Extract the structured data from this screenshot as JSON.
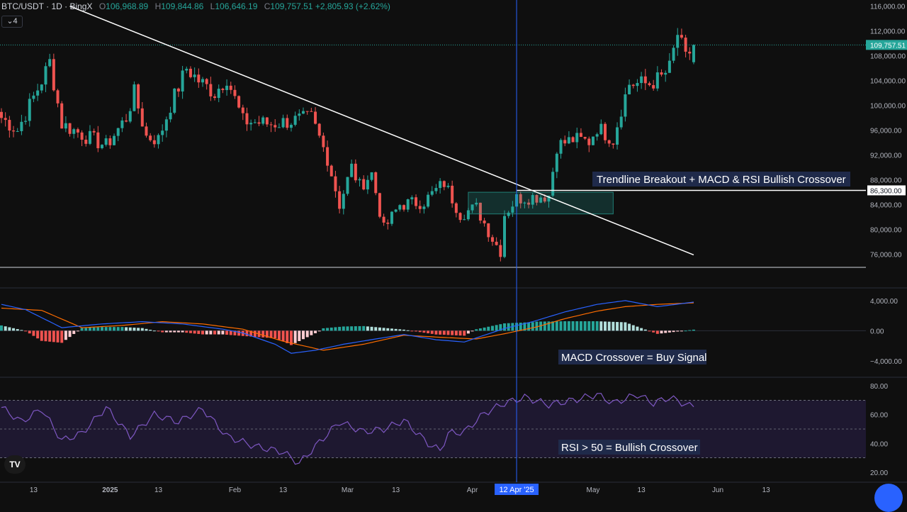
{
  "header": {
    "symbol": "BTC/USDT · 1D · BingX",
    "o_label": "O",
    "o_value": "106,968.89",
    "h_label": "H",
    "h_value": "109,844.86",
    "l_label": "L",
    "l_value": "106,646.19",
    "c_label": "C",
    "c_value": "109,757.51",
    "change": "+2,805.93 (+2.62%)"
  },
  "layers_toggle": "4",
  "logo_text": "TV",
  "price_axis": {
    "ticks": [
      "116,000.00",
      "112,000.00",
      "108,000.00",
      "104,000.00",
      "100,000.00",
      "96,000.00",
      "92,000.00",
      "88,000.00",
      "84,000.00",
      "80,000.00",
      "76,000.00"
    ],
    "last_price": "109,757.51",
    "level": "86,300.00"
  },
  "macd_axis": {
    "ticks": [
      "4,000.00",
      "0.00",
      "−4,000.00"
    ]
  },
  "rsi_axis": {
    "ticks": [
      "80.00",
      "60.00",
      "40.00",
      "20.00"
    ]
  },
  "time_axis": {
    "labels": [
      "13",
      "2025",
      "13",
      "Feb",
      "13",
      "Mar",
      "13",
      "Apr",
      "May",
      "13",
      "Jun",
      "13"
    ],
    "cursor_label": "12 Apr '25"
  },
  "annotations": {
    "breakout": "Trendline Breakout + MACD & RSI Bullish Crossover",
    "macd": "MACD Crossover = Buy Signal",
    "rsi": "RSI > 50 = Bullish Crossover"
  },
  "colors": {
    "bull": "#26a69a",
    "bear": "#ef5350",
    "macd_line": "#2962ff",
    "signal_line": "#ff6d00",
    "rsi_line": "#7e57c2",
    "rsi_band": "#1e1830",
    "cursor": "#2962ff",
    "label_bg": "#1f2a4a"
  },
  "chart_data": [
    {
      "type": "candlestick",
      "title": "BTC/USDT · 1D · BingX",
      "x_range": [
        "2024-12-05",
        "2025-06-20"
      ],
      "ylim": [
        74000,
        117000
      ],
      "ohlc_last": {
        "open": 106968.89,
        "high": 109844.86,
        "low": 106646.19,
        "close": 109757.51
      },
      "anchors": [
        {
          "date": "2024-12-05",
          "close": 98000
        },
        {
          "date": "2024-12-09",
          "close": 96000
        },
        {
          "date": "2024-12-15",
          "close": 104000
        },
        {
          "date": "2024-12-17",
          "close": 107000
        },
        {
          "date": "2024-12-20",
          "close": 97000
        },
        {
          "date": "2024-12-26",
          "close": 95000
        },
        {
          "date": "2024-12-31",
          "close": 93500
        },
        {
          "date": "2025-01-05",
          "close": 98000
        },
        {
          "date": "2025-01-07",
          "close": 102000
        },
        {
          "date": "2025-01-10",
          "close": 95000
        },
        {
          "date": "2025-01-13",
          "close": 94500
        },
        {
          "date": "2025-01-16",
          "close": 100000
        },
        {
          "date": "2025-01-20",
          "close": 106000
        },
        {
          "date": "2025-01-23",
          "close": 104000
        },
        {
          "date": "2025-01-27",
          "close": 102000
        },
        {
          "date": "2025-01-30",
          "close": 104500
        },
        {
          "date": "2025-02-03",
          "close": 97500
        },
        {
          "date": "2025-02-10",
          "close": 97000
        },
        {
          "date": "2025-02-20",
          "close": 98000
        },
        {
          "date": "2025-02-24",
          "close": 91500
        },
        {
          "date": "2025-02-27",
          "close": 84000
        },
        {
          "date": "2025-03-02",
          "close": 90000
        },
        {
          "date": "2025-03-04",
          "close": 87000
        },
        {
          "date": "2025-03-07",
          "close": 89000
        },
        {
          "date": "2025-03-10",
          "close": 80000
        },
        {
          "date": "2025-03-14",
          "close": 84000
        },
        {
          "date": "2025-03-20",
          "close": 84500
        },
        {
          "date": "2025-03-25",
          "close": 87500
        },
        {
          "date": "2025-03-29",
          "close": 82500
        },
        {
          "date": "2025-04-02",
          "close": 83500
        },
        {
          "date": "2025-04-06",
          "close": 78500
        },
        {
          "date": "2025-04-08",
          "close": 76500
        },
        {
          "date": "2025-04-09",
          "close": 82500
        },
        {
          "date": "2025-04-12",
          "close": 85000
        },
        {
          "date": "2025-04-20",
          "close": 85500
        },
        {
          "date": "2025-04-22",
          "close": 93500
        },
        {
          "date": "2025-04-26",
          "close": 94500
        },
        {
          "date": "2025-04-30",
          "close": 94200
        },
        {
          "date": "2025-05-02",
          "close": 96500
        },
        {
          "date": "2025-05-06",
          "close": 94500
        },
        {
          "date": "2025-05-08",
          "close": 99500
        },
        {
          "date": "2025-05-10",
          "close": 103500
        },
        {
          "date": "2025-05-15",
          "close": 103500
        },
        {
          "date": "2025-05-18",
          "close": 104500
        },
        {
          "date": "2025-05-20",
          "close": 106000
        },
        {
          "date": "2025-05-22",
          "close": 111500
        },
        {
          "date": "2025-05-24",
          "close": 107500
        },
        {
          "date": "2025-05-26",
          "close": 109757.51
        }
      ],
      "trendline": [
        {
          "date": "2024-12-22",
          "price": 116000
        },
        {
          "date": "2025-05-26",
          "price": 75900
        }
      ],
      "horizontal_level": {
        "price": 86300,
        "from": "2025-04-12"
      },
      "consolidation_zone": {
        "from": "2025-03-31",
        "to": "2025-05-06",
        "low": 82500,
        "high": 86000
      }
    },
    {
      "type": "line",
      "ylim": [
        -6000,
        5500
      ],
      "macd": [
        [
          0,
          3500
        ],
        [
          6,
          2800
        ],
        [
          15,
          400
        ],
        [
          25,
          900
        ],
        [
          35,
          1200
        ],
        [
          45,
          900
        ],
        [
          55,
          200
        ],
        [
          60,
          -300
        ],
        [
          68,
          -1800
        ],
        [
          72,
          -3000
        ],
        [
          78,
          -2600
        ],
        [
          85,
          -1800
        ],
        [
          93,
          -1100
        ],
        [
          100,
          -500
        ],
        [
          108,
          -1200
        ],
        [
          115,
          -1500
        ],
        [
          125,
          300
        ],
        [
          132,
          1200
        ],
        [
          140,
          2500
        ],
        [
          148,
          3500
        ],
        [
          155,
          4000
        ],
        [
          163,
          3200
        ],
        [
          172,
          3800
        ]
      ],
      "signal": [
        [
          0,
          3000
        ],
        [
          10,
          2700
        ],
        [
          20,
          400
        ],
        [
          30,
          700
        ],
        [
          40,
          1200
        ],
        [
          50,
          900
        ],
        [
          60,
          200
        ],
        [
          70,
          -1400
        ],
        [
          80,
          -2600
        ],
        [
          90,
          -1800
        ],
        [
          100,
          -600
        ],
        [
          110,
          -900
        ],
        [
          118,
          -1100
        ],
        [
          125,
          -400
        ],
        [
          133,
          500
        ],
        [
          140,
          1600
        ],
        [
          148,
          2600
        ],
        [
          155,
          3200
        ],
        [
          163,
          3500
        ],
        [
          172,
          3700
        ]
      ]
    },
    {
      "type": "line",
      "ylim": [
        15,
        85
      ],
      "rsi": [
        [
          0,
          65
        ],
        [
          5,
          55
        ],
        [
          10,
          64
        ],
        [
          15,
          42
        ],
        [
          20,
          47
        ],
        [
          26,
          65
        ],
        [
          32,
          45
        ],
        [
          38,
          60
        ],
        [
          44,
          55
        ],
        [
          50,
          64
        ],
        [
          56,
          45
        ],
        [
          63,
          38
        ],
        [
          70,
          34
        ],
        [
          74,
          26
        ],
        [
          78,
          38
        ],
        [
          84,
          55
        ],
        [
          90,
          48
        ],
        [
          95,
          50
        ],
        [
          100,
          56
        ],
        [
          106,
          40
        ],
        [
          109,
          35
        ],
        [
          111,
          47
        ],
        [
          115,
          48
        ],
        [
          120,
          61
        ],
        [
          125,
          68
        ],
        [
          130,
          72
        ],
        [
          136,
          67
        ],
        [
          142,
          70
        ],
        [
          148,
          74
        ],
        [
          152,
          68
        ],
        [
          158,
          74
        ],
        [
          162,
          68
        ],
        [
          166,
          72
        ],
        [
          171,
          66
        ]
      ]
    }
  ]
}
